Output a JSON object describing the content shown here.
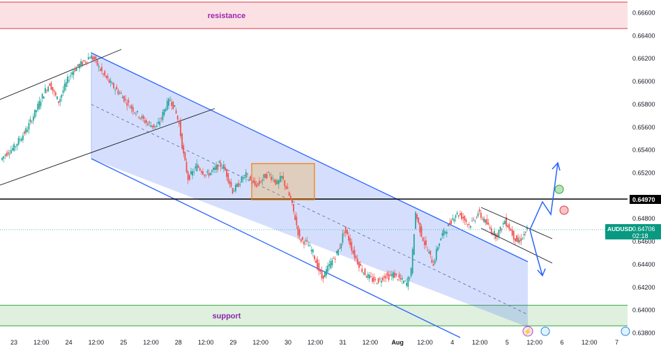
{
  "chart_data": {
    "type": "candlestick",
    "symbol": "AUDUSD",
    "price_label": "0.64706",
    "countdown": "02:18",
    "level_label": "0.64970",
    "zones": [
      {
        "label": "resistance",
        "from": 0.6646,
        "to": 0.6672,
        "fill": "#fbe1e3",
        "stroke": "#e33545",
        "text_color": "#9c27b0"
      },
      {
        "label": "support",
        "from": 0.6386,
        "to": 0.6404,
        "fill": "#dff0df",
        "stroke": "#36a23a",
        "text_color": "#8e24aa"
      }
    ],
    "level": 0.6497,
    "last_price": 0.64706,
    "y_axis": {
      "min": 0.638,
      "max": 0.6672,
      "ticks": [
        "0.66600",
        "0.66400",
        "0.66200",
        "0.66000",
        "0.65800",
        "0.65600",
        "0.65400",
        "0.65200",
        "0.65000",
        "0.64800",
        "0.64600",
        "0.64400",
        "0.64200",
        "0.64000",
        "0.63800"
      ]
    },
    "x_axis": {
      "labels": [
        "23",
        "12:00",
        "24",
        "12:00",
        "25",
        "12:00",
        "28",
        "12:00",
        "29",
        "12:00",
        "30",
        "12:00",
        "31",
        "12:00",
        "Aug",
        "12:00",
        "4",
        "12:00",
        "5",
        "12:00",
        "6",
        "12:00",
        "7"
      ],
      "bold": [
        "Aug"
      ]
    },
    "series": [
      {
        "values": [
          0.6531,
          0.6536,
          0.6539,
          0.6542,
          0.6548,
          0.6553,
          0.6559,
          0.6567,
          0.6575,
          0.6584,
          0.6592,
          0.6598,
          0.6589,
          0.6582,
          0.6592,
          0.6601,
          0.6608,
          0.6612,
          0.6615,
          0.6618,
          0.6622,
          0.6619,
          0.6612,
          0.6606,
          0.6601,
          0.6596,
          0.6592,
          0.6588,
          0.6583,
          0.6578,
          0.6574,
          0.657,
          0.6566,
          0.6563,
          0.6561,
          0.656,
          0.6568,
          0.6578,
          0.6584,
          0.6576,
          0.6562,
          0.6535,
          0.6515,
          0.652,
          0.6526,
          0.6522,
          0.6518,
          0.652,
          0.6523,
          0.6527,
          0.6525,
          0.6515,
          0.6504,
          0.6508,
          0.6514,
          0.6518,
          0.6513,
          0.6509,
          0.6511,
          0.6516,
          0.6519,
          0.6515,
          0.651,
          0.6516,
          0.6507,
          0.6496,
          0.648,
          0.6462,
          0.646,
          0.6456,
          0.645,
          0.6438,
          0.6428,
          0.6434,
          0.6441,
          0.6447,
          0.6455,
          0.647,
          0.6462,
          0.645,
          0.6442,
          0.6435,
          0.643,
          0.6427,
          0.6425,
          0.6426,
          0.643,
          0.6429,
          0.6431,
          0.6428,
          0.6425,
          0.6423,
          0.6434,
          0.6485,
          0.647,
          0.6458,
          0.6449,
          0.644,
          0.6456,
          0.6466,
          0.6471,
          0.6478,
          0.6484,
          0.6483,
          0.6479,
          0.6474,
          0.6478,
          0.6485,
          0.648,
          0.6475,
          0.6469,
          0.6465,
          0.647,
          0.6478,
          0.6472,
          0.6464,
          0.6459,
          0.6464,
          0.647
        ]
      }
    ]
  },
  "axis_label_color": "#131722"
}
